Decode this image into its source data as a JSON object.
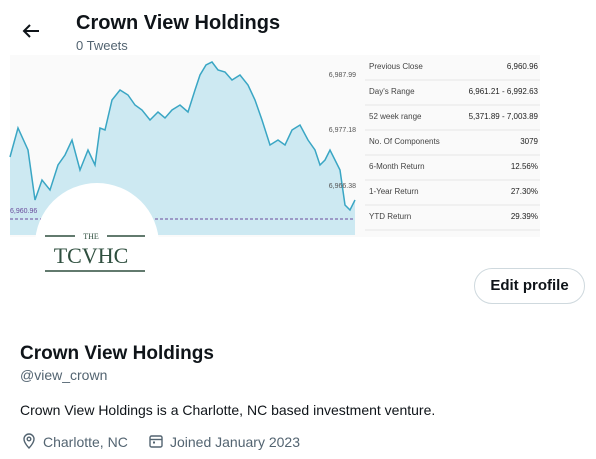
{
  "header": {
    "title": "Crown View Holdings",
    "subtitle": "0 Tweets"
  },
  "banner": {
    "axis_labels": [
      "6,987.99",
      "6,977.18",
      "6,966.38",
      "6,960.96"
    ],
    "stats": [
      [
        "Previous Close",
        "6,960.96"
      ],
      [
        "Day's Range",
        "6,961.21 - 6,992.63"
      ],
      [
        "52 week range",
        "5,371.89 - 7,003.89"
      ],
      [
        "No. Of Components",
        "3079"
      ],
      [
        "6-Month Return",
        "12.56%"
      ],
      [
        "1-Year Return",
        "27.30%"
      ],
      [
        "YTD Return",
        "29.39%"
      ]
    ]
  },
  "avatar": {
    "small": "THE",
    "large": "TCVHC"
  },
  "edit_button": "Edit profile",
  "profile": {
    "name": "Crown View Holdings",
    "handle": "@view_crown",
    "bio": "Crown View Holdings is a Charlotte, NC based investment venture.",
    "location": "Charlotte, NC",
    "joined": "Joined January 2023"
  }
}
